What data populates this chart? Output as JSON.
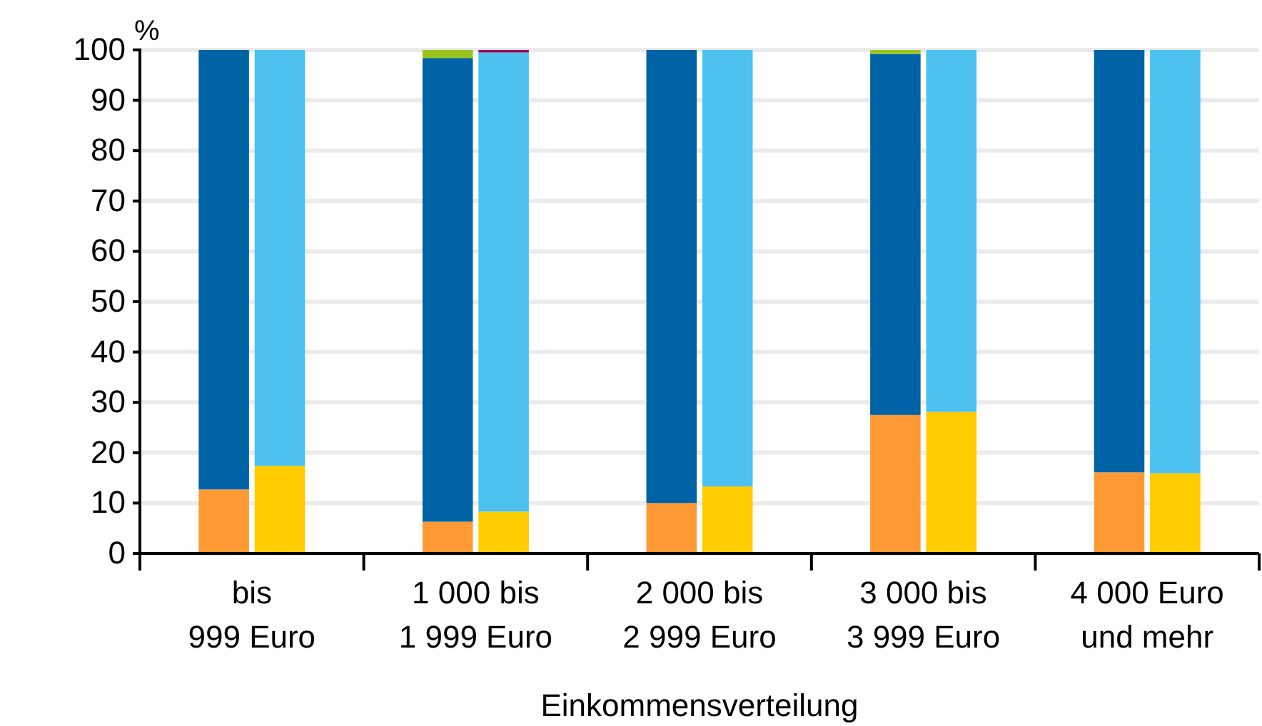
{
  "chart_data": {
    "type": "bar",
    "stacked": true,
    "xlabel": "Einkommensverteilung",
    "ylabel": "%",
    "categories": [
      null,
      "bis\n999 Euro",
      null,
      null,
      null,
      "1 000 bis\n1 999 Euro",
      null,
      null,
      null,
      "2 000 bis\n2 999 Euro",
      null,
      null,
      null,
      "3 000 bis\n3 999 Euro",
      null,
      null,
      null,
      "4 000 Euro\nund mehr",
      null,
      null
    ],
    "ylim": [
      0,
      100
    ],
    "yticks": [
      0,
      10,
      20,
      30,
      40,
      50,
      60,
      70,
      80,
      90,
      100
    ],
    "grid": "y",
    "series": [
      {
        "color": "#ff9933",
        "values": [
          null,
          12.7,
          null,
          null,
          null,
          6.3,
          null,
          null,
          null,
          10.0,
          null,
          null,
          null,
          27.5,
          null,
          null,
          null,
          16.1,
          null,
          null
        ]
      },
      {
        "color": "#0063a6",
        "values": [
          null,
          87.3,
          null,
          null,
          null,
          92.1,
          null,
          null,
          null,
          90.0,
          null,
          null,
          null,
          71.7,
          null,
          null,
          null,
          83.9,
          null,
          null
        ]
      },
      {
        "color": "#99c31c",
        "values": [
          null,
          0,
          null,
          null,
          null,
          1.6,
          null,
          null,
          null,
          0,
          null,
          null,
          null,
          0.8,
          null,
          null,
          null,
          0,
          null,
          null
        ]
      },
      {
        "color": "#ffcc00",
        "values": [
          null,
          null,
          17.4,
          null,
          null,
          null,
          8.3,
          null,
          null,
          null,
          13.3,
          null,
          null,
          null,
          28.1,
          null,
          null,
          null,
          15.9,
          null
        ]
      },
      {
        "color": "#4dc1f0",
        "values": [
          null,
          null,
          82.6,
          null,
          null,
          null,
          91.2,
          null,
          null,
          null,
          86.7,
          null,
          null,
          null,
          71.9,
          null,
          null,
          null,
          84.1,
          null
        ]
      },
      {
        "color": "#a0005a",
        "values": [
          null,
          null,
          0,
          null,
          null,
          null,
          0.5,
          null,
          null,
          null,
          0,
          null,
          null,
          null,
          0,
          null,
          null,
          null,
          0,
          null
        ]
      }
    ]
  }
}
